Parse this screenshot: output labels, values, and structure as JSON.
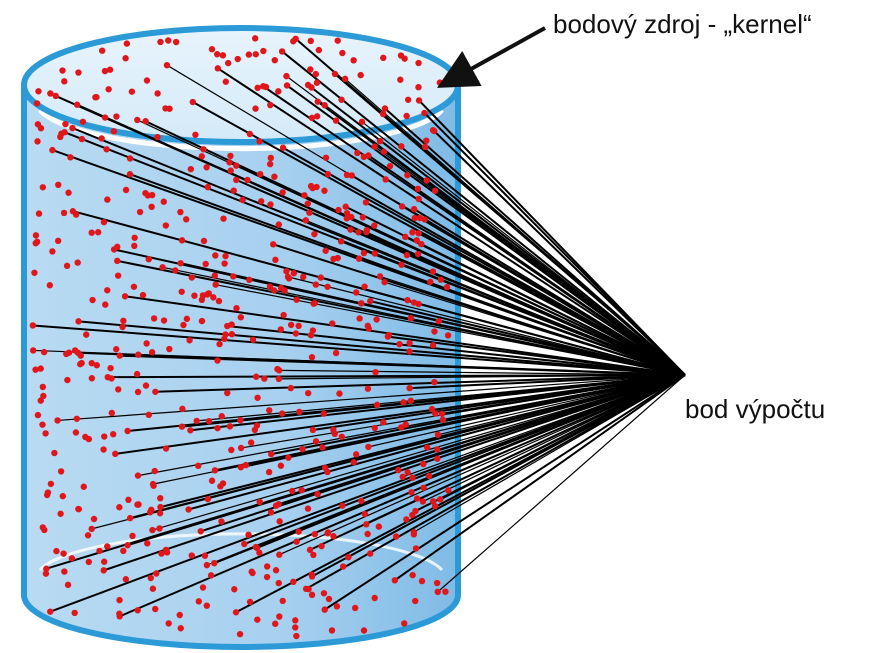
{
  "labels": {
    "kernel": "bodový zdroj - „kernel“",
    "point": "bod výpočtu"
  }
}
